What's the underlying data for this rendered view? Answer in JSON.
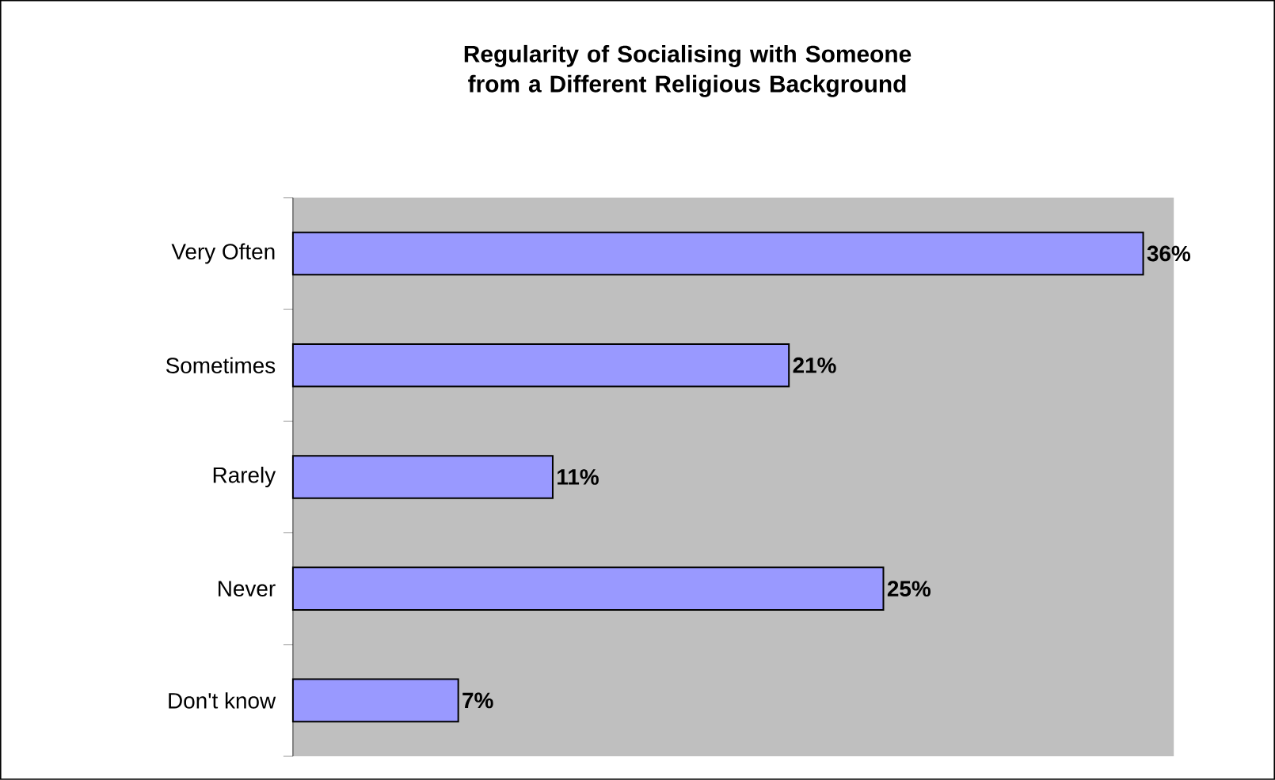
{
  "chart_data": {
    "type": "bar",
    "orientation": "horizontal",
    "title": "Regularity of Socialising with Someone from a Different Religious Background",
    "categories": [
      "Very Often",
      "Sometimes",
      "Rarely",
      "Never",
      "Don't know"
    ],
    "values": [
      36,
      21,
      11,
      25,
      7
    ],
    "value_labels": [
      "36%",
      "21%",
      "11%",
      "25%",
      "7%"
    ],
    "color": "#9999ff"
  }
}
